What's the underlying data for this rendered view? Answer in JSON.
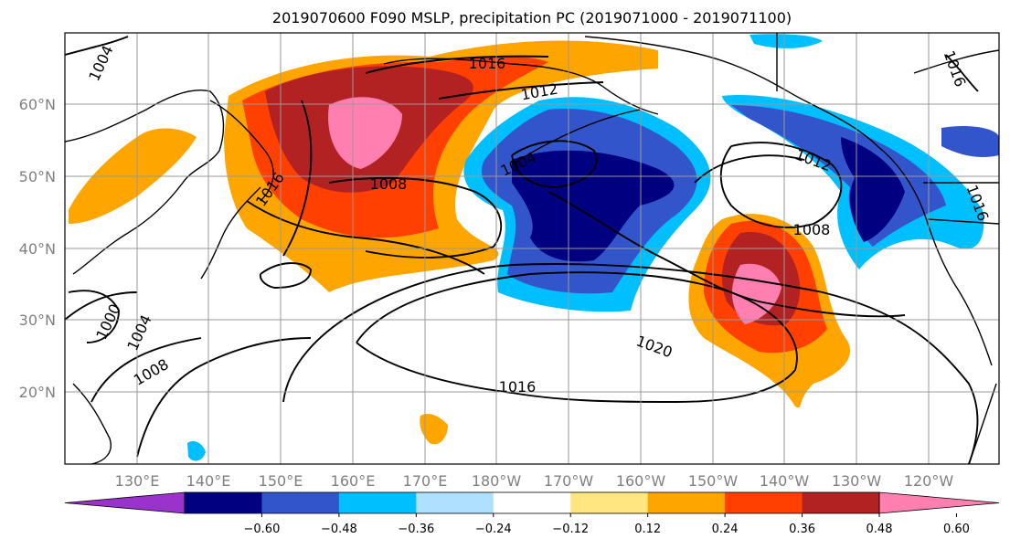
{
  "title": "2019070600 F090 MSLP, precipitation PC (2019071000 - 2019071100)",
  "map": {
    "lat_labels": [
      "60°N",
      "50°N",
      "40°N",
      "30°N",
      "20°N"
    ],
    "lon_labels": [
      "130°E",
      "140°E",
      "150°E",
      "160°E",
      "170°E",
      "180°W",
      "170°W",
      "160°W",
      "150°W",
      "140°W",
      "130°W",
      "120°W"
    ],
    "isobar_labels": [
      "1004",
      "1016",
      "1012",
      "1004",
      "1008",
      "1016",
      "1008",
      "1012",
      "1016",
      "1016",
      "1000",
      "1004",
      "1008",
      "1020",
      "1016"
    ],
    "gridlines": true
  },
  "colorbar": {
    "tick_labels": [
      "−0.60",
      "−0.48",
      "−0.36",
      "−0.24",
      "−0.12",
      "0.12",
      "0.24",
      "0.36",
      "0.48",
      "0.60"
    ],
    "colors": [
      "#9933cc",
      "#000080",
      "#3355cc",
      "#00bfff",
      "#b0e0ff",
      "#ffffff",
      "#ffe680",
      "#ffa500",
      "#ff4000",
      "#b22222",
      "#ff80b0"
    ]
  },
  "colors": {
    "pink": "#ff80b0",
    "darkred": "#b22222",
    "red": "#ff4000",
    "orange": "#ffa500",
    "yellow": "#ffe680",
    "white": "#ffffff",
    "lightblue": "#b0e0ff",
    "cyan": "#00bfff",
    "blue": "#3355cc",
    "navy": "#000080"
  }
}
